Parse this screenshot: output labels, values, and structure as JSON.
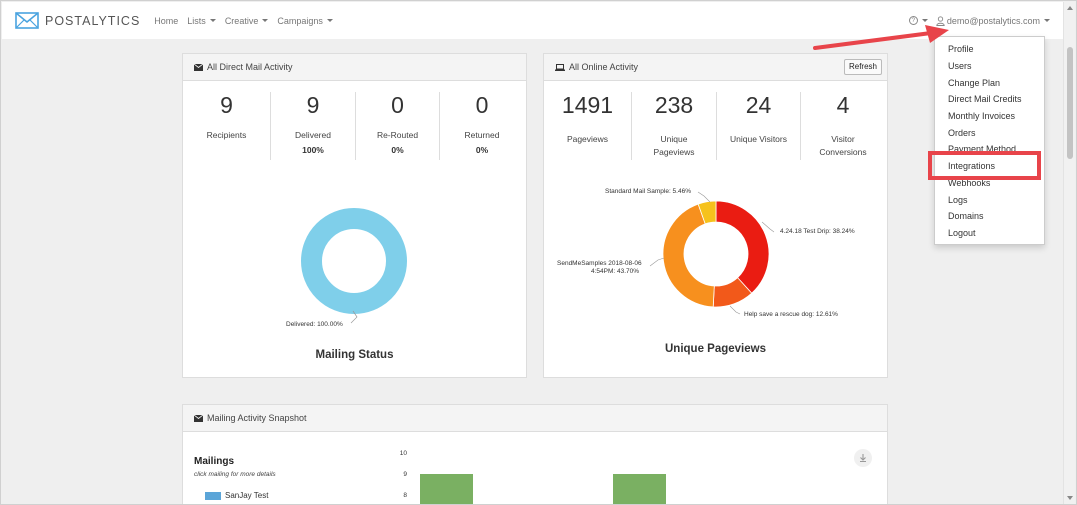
{
  "app": {
    "brand": "POSTALYTICS"
  },
  "nav": {
    "links": [
      {
        "label": "Home",
        "dropdown": false
      },
      {
        "label": "Lists",
        "dropdown": true
      },
      {
        "label": "Creative",
        "dropdown": true
      },
      {
        "label": "Campaigns",
        "dropdown": true
      }
    ],
    "help_icon": "?",
    "user_email": "demo@postalytics.com"
  },
  "user_menu": {
    "items": [
      "Profile",
      "Users",
      "Change Plan",
      "Direct Mail Credits",
      "Monthly Invoices",
      "Orders",
      "Payment Method",
      "Integrations",
      "Webhooks",
      "Logs",
      "Domains",
      "Logout"
    ],
    "highlighted": "Integrations"
  },
  "direct_mail": {
    "title": "All Direct Mail Activity",
    "stats": [
      {
        "value": "9",
        "label": "Recipients",
        "pct": ""
      },
      {
        "value": "9",
        "label": "Delivered",
        "pct": "100%"
      },
      {
        "value": "0",
        "label": "Re-Routed",
        "pct": "0%"
      },
      {
        "value": "0",
        "label": "Returned",
        "pct": "0%"
      }
    ],
    "chart_title": "Mailing Status",
    "slice_label": "Delivered: 100.00%"
  },
  "online": {
    "title": "All Online Activity",
    "refresh_label": "Refresh",
    "stats": [
      {
        "value": "1491",
        "label1": "Pageviews",
        "label2": ""
      },
      {
        "value": "238",
        "label1": "Unique",
        "label2": "Pageviews"
      },
      {
        "value": "24",
        "label1": "Unique Visitors",
        "label2": ""
      },
      {
        "value": "4",
        "label1": "Visitor",
        "label2": "Conversions"
      }
    ],
    "chart_title": "Unique Pageviews",
    "slice_labels": {
      "drip": "4.24.18 Test Drip: 38.24%",
      "dog": "Help save a rescue dog: 12.61%",
      "samples1": "SendMeSamples 2018-08-06",
      "samples2": "4:54PM: 43.70%",
      "standard": "Standard Mail Sample: 5.46%"
    }
  },
  "snapshot": {
    "title": "Mailing Activity Snapshot",
    "mailings_title": "Mailings",
    "mailings_hint": "click mailing for more details",
    "legend": "SanJay Test",
    "yticks": [
      "10",
      "9",
      "8"
    ]
  },
  "chart_data": [
    {
      "type": "pie",
      "title": "Mailing Status",
      "categories": [
        "Delivered"
      ],
      "values": [
        100.0
      ],
      "colors": [
        "#7fcfea"
      ]
    },
    {
      "type": "pie",
      "title": "Unique Pageviews",
      "categories": [
        "4.24.18 Test Drip",
        "Help save a rescue dog",
        "SendMeSamples 2018-08-06 4:54PM",
        "Standard Mail Sample"
      ],
      "values": [
        38.24,
        12.61,
        43.7,
        5.46
      ],
      "colors": [
        "#ea1c12",
        "#f2591a",
        "#f7901e",
        "#f6c21c"
      ]
    },
    {
      "type": "bar",
      "title": "",
      "categories": [
        "",
        ""
      ],
      "series": [
        {
          "name": "SanJay Test",
          "values": [
            9,
            9
          ]
        }
      ],
      "ylim": [
        7.5,
        10
      ],
      "colors": [
        "#7ab062"
      ]
    }
  ]
}
